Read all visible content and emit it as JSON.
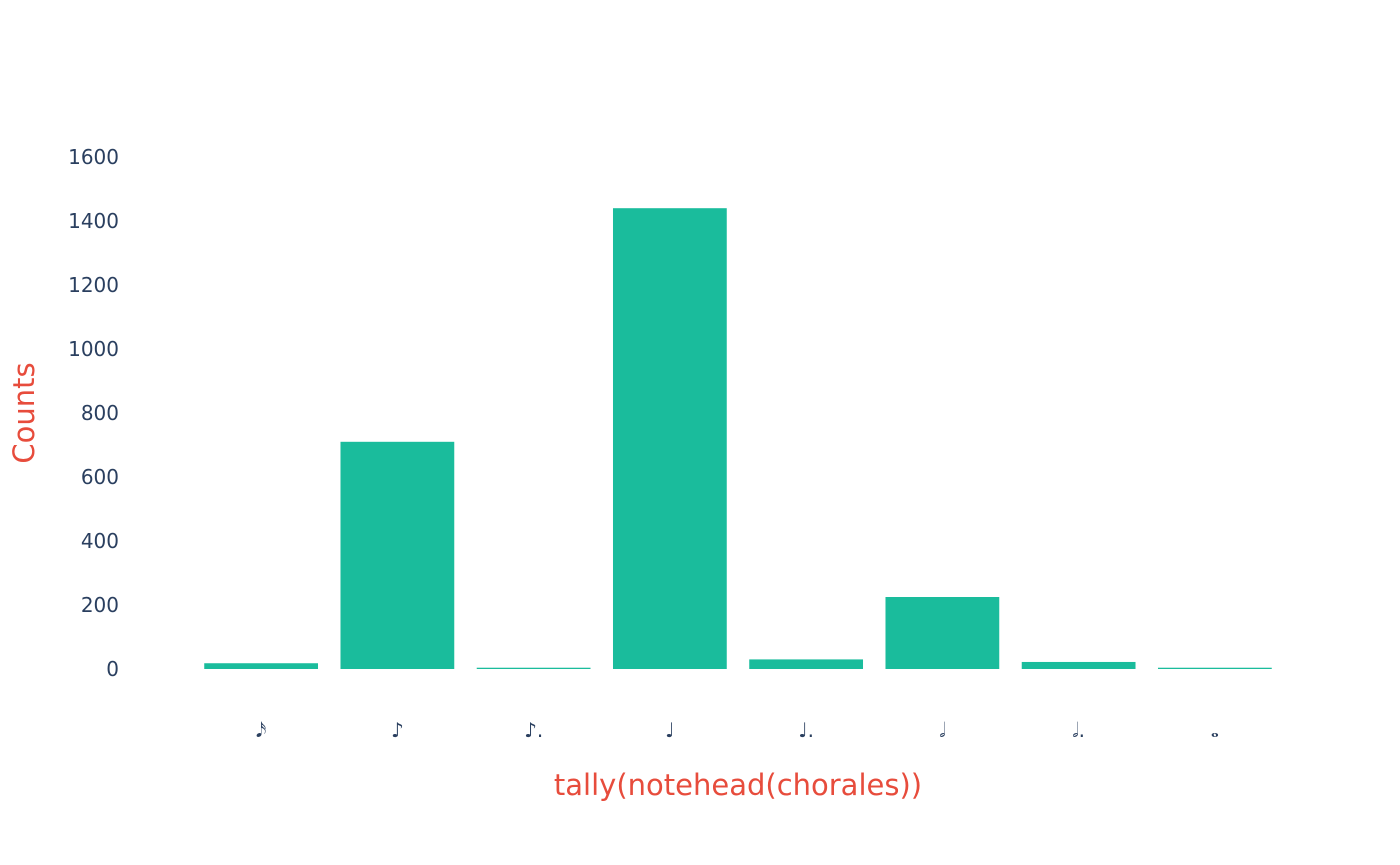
{
  "chart_data": {
    "type": "bar",
    "title": "",
    "xlabel": "tally(notehead(chorales))",
    "ylabel": "Counts",
    "categories": [
      "𝅘𝅥𝅯",
      "♪",
      "♪.",
      "♩",
      "♩.",
      "𝅗𝅥",
      "𝅗𝅥.",
      "𝅝"
    ],
    "values": [
      18,
      710,
      4,
      1440,
      30,
      225,
      22,
      4
    ],
    "ylim": [
      0,
      1600
    ],
    "yticks": [
      0,
      200,
      400,
      600,
      800,
      1000,
      1200,
      1400,
      1600
    ],
    "grid": false,
    "legend": "none"
  },
  "colors": {
    "bar": "#1abc9c",
    "tick_text": "#2a3f5f",
    "axis_title": "#e74c3c",
    "background": "#ffffff"
  }
}
